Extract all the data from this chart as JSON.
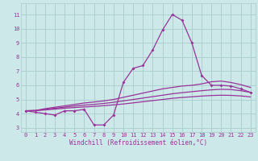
{
  "xlabel": "Windchill (Refroidissement éolien,°C)",
  "xlim": [
    -0.5,
    23.5
  ],
  "ylim": [
    2.7,
    11.8
  ],
  "yticks": [
    3,
    4,
    5,
    6,
    7,
    8,
    9,
    10,
    11
  ],
  "xticks": [
    0,
    1,
    2,
    3,
    4,
    5,
    6,
    7,
    8,
    9,
    10,
    11,
    12,
    13,
    14,
    15,
    16,
    17,
    18,
    19,
    20,
    21,
    22,
    23
  ],
  "bg_color": "#cce8e8",
  "grid_color": "#aacccc",
  "line_color": "#993399",
  "s1_x": [
    0,
    1,
    2,
    3,
    4,
    5,
    6,
    7,
    8,
    9,
    10,
    11,
    12,
    13,
    14,
    15,
    16,
    17,
    18,
    19,
    20,
    21,
    22,
    23
  ],
  "s1_y": [
    4.2,
    4.1,
    4.0,
    3.9,
    4.2,
    4.2,
    4.3,
    3.2,
    3.2,
    3.9,
    6.2,
    7.2,
    7.4,
    8.5,
    9.9,
    11.0,
    10.6,
    9.0,
    6.7,
    6.0,
    6.0,
    5.95,
    5.75,
    5.5
  ],
  "s2_x": [
    0,
    1,
    2,
    3,
    4,
    5,
    6,
    7,
    8,
    9,
    10,
    11,
    12,
    13,
    14,
    15,
    16,
    17,
    18,
    19,
    20,
    21,
    22,
    23
  ],
  "s2_y": [
    4.2,
    4.22,
    4.35,
    4.45,
    4.55,
    4.65,
    4.75,
    4.82,
    4.9,
    5.0,
    5.15,
    5.3,
    5.45,
    5.6,
    5.75,
    5.85,
    5.95,
    6.0,
    6.1,
    6.25,
    6.3,
    6.2,
    6.05,
    5.85
  ],
  "s3_x": [
    0,
    1,
    2,
    3,
    4,
    5,
    6,
    7,
    8,
    9,
    10,
    11,
    12,
    13,
    14,
    15,
    16,
    17,
    18,
    19,
    20,
    21,
    22,
    23
  ],
  "s3_y": [
    4.2,
    4.22,
    4.3,
    4.38,
    4.46,
    4.54,
    4.6,
    4.65,
    4.72,
    4.8,
    4.9,
    5.0,
    5.1,
    5.2,
    5.3,
    5.4,
    5.48,
    5.55,
    5.62,
    5.68,
    5.72,
    5.7,
    5.62,
    5.5
  ],
  "s4_x": [
    0,
    1,
    2,
    3,
    4,
    5,
    6,
    7,
    8,
    9,
    10,
    11,
    12,
    13,
    14,
    15,
    16,
    17,
    18,
    19,
    20,
    21,
    22,
    23
  ],
  "s4_y": [
    4.2,
    4.21,
    4.26,
    4.32,
    4.38,
    4.43,
    4.47,
    4.51,
    4.56,
    4.62,
    4.68,
    4.76,
    4.84,
    4.92,
    5.0,
    5.08,
    5.14,
    5.19,
    5.24,
    5.28,
    5.3,
    5.29,
    5.25,
    5.18
  ]
}
